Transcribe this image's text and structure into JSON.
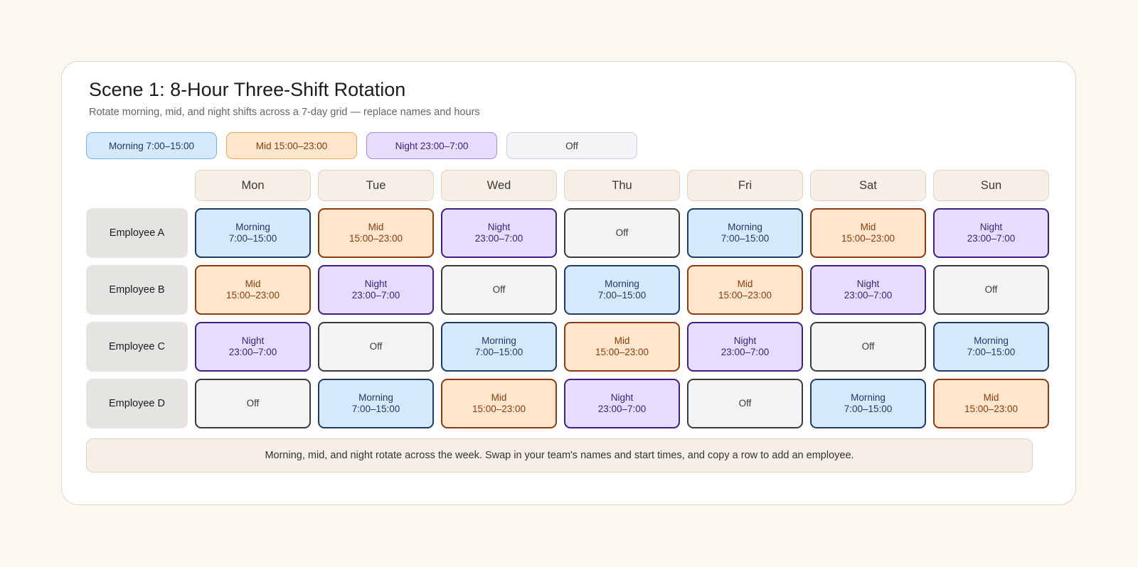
{
  "title": "Scene 1: 8-Hour Three-Shift Rotation",
  "subtitle": "Rotate morning, mid, and night shifts across a 7-day grid — replace names and hours",
  "legend": [
    {
      "key": "m",
      "label": "Morning 7:00–15:00"
    },
    {
      "key": "d",
      "label": "Mid 15:00–23:00"
    },
    {
      "key": "n",
      "label": "Night 23:00–7:00"
    },
    {
      "key": "o",
      "label": "Off"
    }
  ],
  "shifts": {
    "m": {
      "name": "Morning",
      "hours": "7:00–15:00"
    },
    "d": {
      "name": "Mid",
      "hours": "15:00–23:00"
    },
    "n": {
      "name": "Night",
      "hours": "23:00–7:00"
    },
    "o": {
      "name": "Off",
      "hours": ""
    }
  },
  "days": [
    "Mon",
    "Tue",
    "Wed",
    "Thu",
    "Fri",
    "Sat",
    "Sun"
  ],
  "employees": [
    {
      "name": "Employee A",
      "schedule": [
        "m",
        "d",
        "n",
        "o",
        "m",
        "d",
        "n"
      ]
    },
    {
      "name": "Employee B",
      "schedule": [
        "d",
        "n",
        "o",
        "m",
        "d",
        "n",
        "o"
      ]
    },
    {
      "name": "Employee C",
      "schedule": [
        "n",
        "o",
        "m",
        "d",
        "n",
        "o",
        "m"
      ]
    },
    {
      "name": "Employee D",
      "schedule": [
        "o",
        "m",
        "d",
        "n",
        "o",
        "m",
        "d"
      ]
    }
  ],
  "note": "Morning, mid, and night rotate across the week. Swap in your team's names and start times, and copy a row to add an employee."
}
